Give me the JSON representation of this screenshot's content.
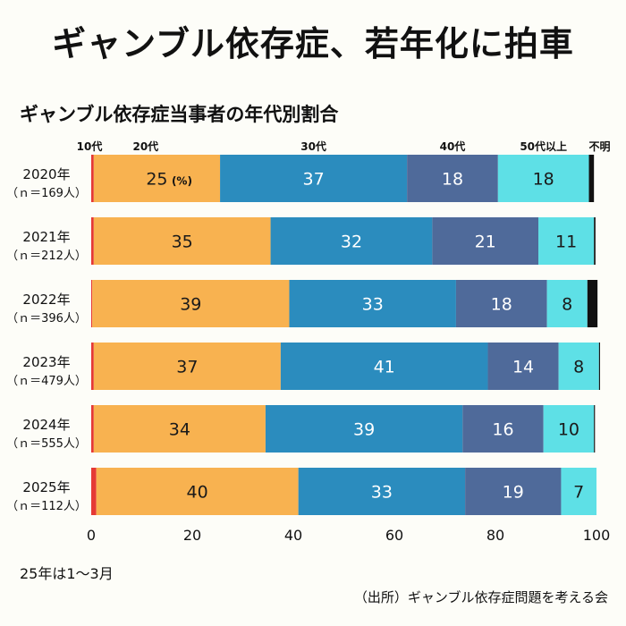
{
  "headline": "ギャンブル依存症、若年化に拍車",
  "chart_data": {
    "type": "bar",
    "orientation": "horizontal-stacked-100",
    "title": "ギャンブル依存症当事者の年代別割合",
    "unit_label": "(%)",
    "categories": [
      "2020年",
      "2021年",
      "2022年",
      "2023年",
      "2024年",
      "2025年"
    ],
    "sample_sizes": [
      "（ｎ＝169人）",
      "（ｎ＝212人）",
      "（ｎ＝396人）",
      "（ｎ＝479人）",
      "（ｎ＝555人）",
      "（ｎ＝112人）"
    ],
    "series": [
      {
        "name": "10代",
        "color": "#e53935",
        "values": [
          0.5,
          0.5,
          0.2,
          0.5,
          0.5,
          1
        ],
        "labels": [
          "",
          "",
          "",
          "",
          "",
          ""
        ]
      },
      {
        "name": "20代",
        "color": "#f8b250",
        "values": [
          25,
          35,
          39,
          37,
          34,
          40
        ],
        "labels": [
          "25",
          "35",
          "39",
          "37",
          "34",
          "40"
        ]
      },
      {
        "name": "30代",
        "color": "#2b8cbe",
        "values": [
          37,
          32,
          33,
          41,
          39,
          33
        ],
        "labels": [
          "37",
          "32",
          "33",
          "41",
          "39",
          "33"
        ]
      },
      {
        "name": "40代",
        "color": "#4f6a9a",
        "values": [
          18,
          21,
          18,
          14,
          16,
          19
        ],
        "labels": [
          "18",
          "21",
          "18",
          "14",
          "16",
          "19"
        ]
      },
      {
        "name": "50代以上",
        "color": "#5ee0e6",
        "values": [
          18,
          11,
          8,
          8,
          10,
          7
        ],
        "labels": [
          "18",
          "11",
          "8",
          "8",
          "10",
          "7"
        ]
      },
      {
        "name": "不明",
        "color": "#111111",
        "values": [
          1,
          0.3,
          2,
          0.2,
          0.2,
          0
        ],
        "labels": [
          "",
          "",
          "",
          "",
          "",
          ""
        ]
      }
    ],
    "xlim": [
      0,
      100
    ],
    "xticks": [
      0,
      20,
      40,
      60,
      80,
      100
    ],
    "legend": "top, inline above bars",
    "grid": false
  },
  "note": "25年は1～3月",
  "source": "（出所）ギャンブル依存症問題を考える会"
}
